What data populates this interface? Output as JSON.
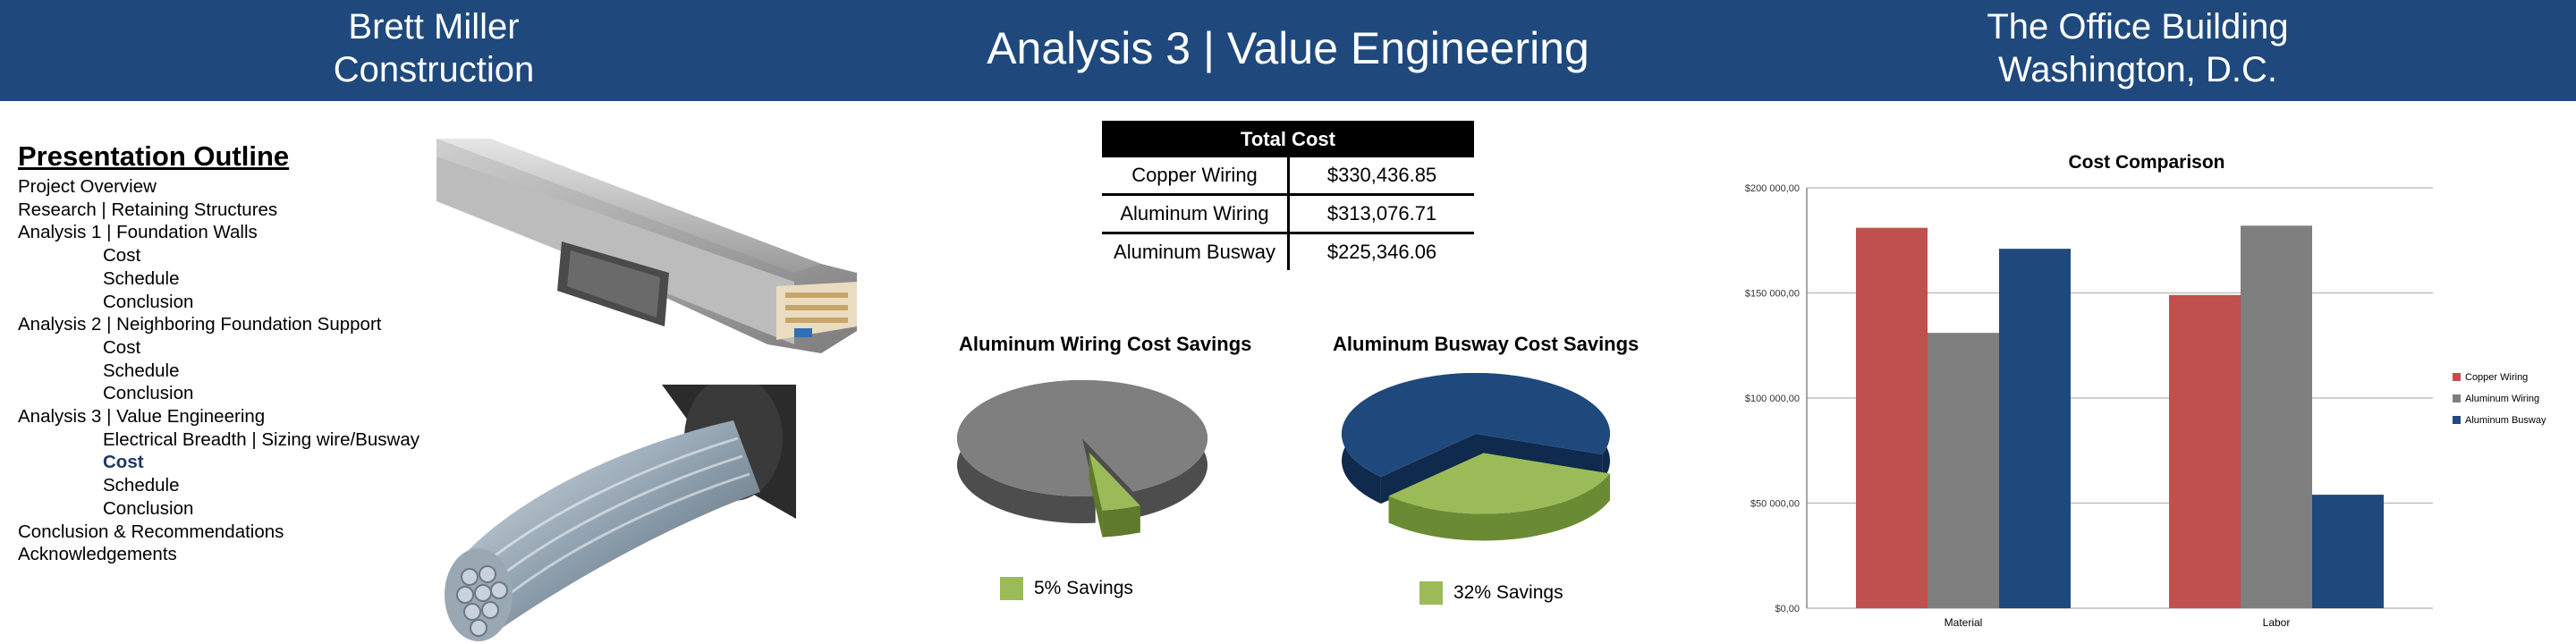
{
  "header": {
    "left_line1": "Brett Miller",
    "left_line2": "Construction",
    "center_title": "Analysis 3 | Value Engineering",
    "right_line1": "The Office Building",
    "right_line2": "Washington, D.C."
  },
  "outline": {
    "title": "Presentation Outline",
    "items": [
      {
        "label": "Project Overview",
        "level": 0
      },
      {
        "label": "Research | Retaining Structures",
        "level": 0
      },
      {
        "label": "Analysis 1 | Foundation Walls",
        "level": 0
      },
      {
        "label": "Cost",
        "level": 1
      },
      {
        "label": "Schedule",
        "level": 1
      },
      {
        "label": "Conclusion",
        "level": 1
      },
      {
        "label": "Analysis 2 | Neighboring Foundation Support",
        "level": 0
      },
      {
        "label": "Cost",
        "level": 1
      },
      {
        "label": "Schedule",
        "level": 1
      },
      {
        "label": "Conclusion",
        "level": 1
      },
      {
        "label": "Analysis 3 | Value Engineering",
        "level": 0
      },
      {
        "label": "Electrical Breadth | Sizing wire/Busway",
        "level": 1
      },
      {
        "label": "Cost",
        "level": 1,
        "active": true
      },
      {
        "label": "Schedule",
        "level": 1
      },
      {
        "label": "Conclusion",
        "level": 1
      },
      {
        "label": "Conclusion & Recommendations",
        "level": 0
      },
      {
        "label": "Acknowledgements",
        "level": 0
      }
    ]
  },
  "cost_table": {
    "header": "Total Cost",
    "rows": [
      {
        "name": "Copper Wiring",
        "value": "$330,436.85"
      },
      {
        "name": "Aluminum Wiring",
        "value": "$313,076.71"
      },
      {
        "name": "Aluminum Busway",
        "value": "$225,346.06"
      }
    ]
  },
  "colors": {
    "banner": "#1f497d",
    "copper": "#c0504d",
    "aluminum_wiring": "#7f7f7f",
    "aluminum_busway": "#1f497d",
    "savings": "#9bbb59"
  },
  "chart_data": [
    {
      "type": "pie",
      "title": "Aluminum Wiring Cost Savings",
      "slices": [
        {
          "label": "",
          "value": 95
        },
        {
          "label": "5% Savings",
          "value": 5
        }
      ],
      "legend": "5% Savings"
    },
    {
      "type": "pie",
      "title": "Aluminum Busway Cost Savings",
      "slices": [
        {
          "label": "",
          "value": 68
        },
        {
          "label": "32% Savings",
          "value": 32
        }
      ],
      "legend": "32% Savings"
    },
    {
      "type": "bar",
      "title": "Cost Comparison",
      "categories": [
        "Material",
        "Labor"
      ],
      "series": [
        {
          "name": "Copper Wiring",
          "values": [
            181000,
            149000
          ]
        },
        {
          "name": "Aluminum Wiring",
          "values": [
            131000,
            182000
          ]
        },
        {
          "name": "Aluminum Busway",
          "values": [
            171000,
            54000
          ]
        }
      ],
      "ylim": [
        0,
        200000
      ],
      "yticks": [
        "$0,00",
        "$50 000,00",
        "$100 000,00",
        "$150 000,00",
        "$200 000,00"
      ],
      "grid": true,
      "legend_position": "right"
    }
  ]
}
